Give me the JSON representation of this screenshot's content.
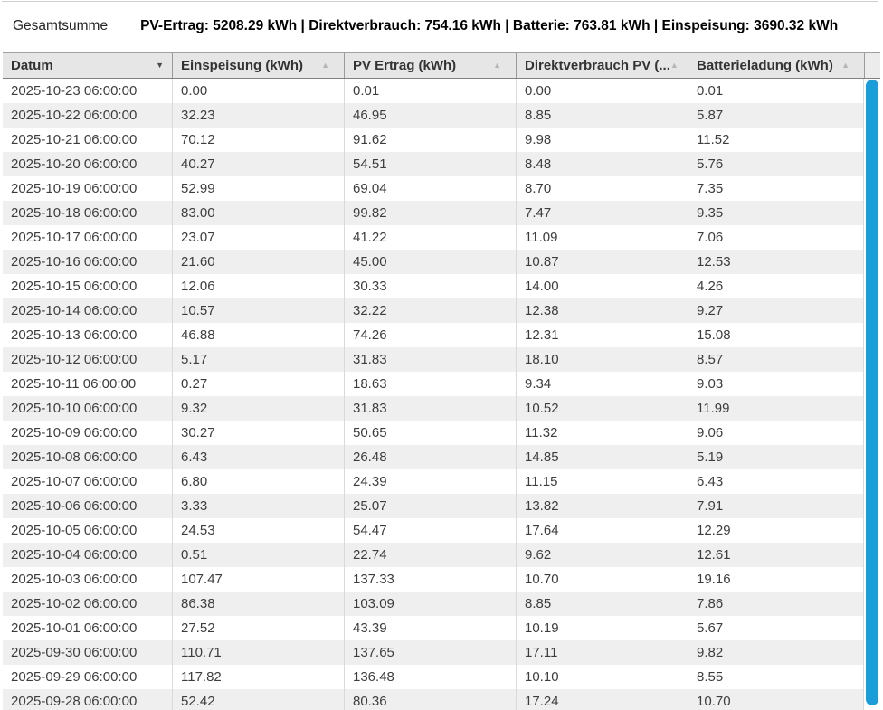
{
  "summary": {
    "label": "Gesamtsumme",
    "totals_text": "PV-Ertrag: 5208.29 kWh | Direktverbrauch: 754.16 kWh | Batterie: 763.81 kWh | Einspeisung: 3690.32 kWh"
  },
  "icons": {
    "sort_desc": "▼",
    "sort_asc": "▲"
  },
  "colors": {
    "scrollbar": "#1b9dd9",
    "header_bg": "#e6e6e6",
    "row_alt_bg": "#efefef",
    "text": "#3d3d3d"
  },
  "table": {
    "columns": [
      {
        "label": "Datum",
        "sort": "desc"
      },
      {
        "label": "Einspeisung (kWh)",
        "sort": "none"
      },
      {
        "label": "PV Ertrag (kWh)",
        "sort": "none"
      },
      {
        "label": "Direktverbrauch PV (...",
        "sort": "none"
      },
      {
        "label": "Batterieladung (kWh)",
        "sort": "none"
      }
    ],
    "rows": [
      [
        "2025-10-23 06:00:00",
        "0.00",
        "0.01",
        "0.00",
        "0.01"
      ],
      [
        "2025-10-22 06:00:00",
        "32.23",
        "46.95",
        "8.85",
        "5.87"
      ],
      [
        "2025-10-21 06:00:00",
        "70.12",
        "91.62",
        "9.98",
        "11.52"
      ],
      [
        "2025-10-20 06:00:00",
        "40.27",
        "54.51",
        "8.48",
        "5.76"
      ],
      [
        "2025-10-19 06:00:00",
        "52.99",
        "69.04",
        "8.70",
        "7.35"
      ],
      [
        "2025-10-18 06:00:00",
        "83.00",
        "99.82",
        "7.47",
        "9.35"
      ],
      [
        "2025-10-17 06:00:00",
        "23.07",
        "41.22",
        "11.09",
        "7.06"
      ],
      [
        "2025-10-16 06:00:00",
        "21.60",
        "45.00",
        "10.87",
        "12.53"
      ],
      [
        "2025-10-15 06:00:00",
        "12.06",
        "30.33",
        "14.00",
        "4.26"
      ],
      [
        "2025-10-14 06:00:00",
        "10.57",
        "32.22",
        "12.38",
        "9.27"
      ],
      [
        "2025-10-13 06:00:00",
        "46.88",
        "74.26",
        "12.31",
        "15.08"
      ],
      [
        "2025-10-12 06:00:00",
        "5.17",
        "31.83",
        "18.10",
        "8.57"
      ],
      [
        "2025-10-11 06:00:00",
        "0.27",
        "18.63",
        "9.34",
        "9.03"
      ],
      [
        "2025-10-10 06:00:00",
        "9.32",
        "31.83",
        "10.52",
        "11.99"
      ],
      [
        "2025-10-09 06:00:00",
        "30.27",
        "50.65",
        "11.32",
        "9.06"
      ],
      [
        "2025-10-08 06:00:00",
        "6.43",
        "26.48",
        "14.85",
        "5.19"
      ],
      [
        "2025-10-07 06:00:00",
        "6.80",
        "24.39",
        "11.15",
        "6.43"
      ],
      [
        "2025-10-06 06:00:00",
        "3.33",
        "25.07",
        "13.82",
        "7.91"
      ],
      [
        "2025-10-05 06:00:00",
        "24.53",
        "54.47",
        "17.64",
        "12.29"
      ],
      [
        "2025-10-04 06:00:00",
        "0.51",
        "22.74",
        "9.62",
        "12.61"
      ],
      [
        "2025-10-03 06:00:00",
        "107.47",
        "137.33",
        "10.70",
        "19.16"
      ],
      [
        "2025-10-02 06:00:00",
        "86.38",
        "103.09",
        "8.85",
        "7.86"
      ],
      [
        "2025-10-01 06:00:00",
        "27.52",
        "43.39",
        "10.19",
        "5.67"
      ],
      [
        "2025-09-30 06:00:00",
        "110.71",
        "137.65",
        "17.11",
        "9.82"
      ],
      [
        "2025-09-29 06:00:00",
        "117.82",
        "136.48",
        "10.10",
        "8.55"
      ],
      [
        "2025-09-28 06:00:00",
        "52.42",
        "80.36",
        "17.24",
        "10.70"
      ]
    ]
  }
}
